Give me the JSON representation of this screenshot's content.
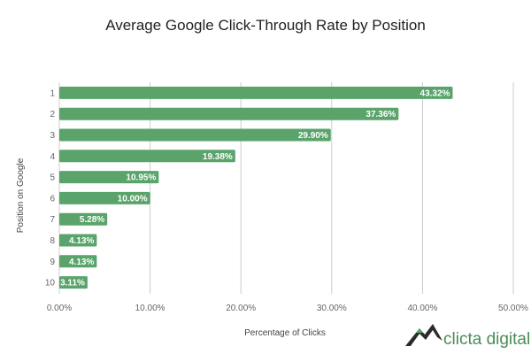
{
  "chart_data": {
    "type": "bar",
    "orientation": "horizontal",
    "title": "Average Google Click-Through Rate by Position",
    "xlabel": "Percentage of Clicks",
    "ylabel": "Position on Google",
    "categories": [
      "1",
      "2",
      "3",
      "4",
      "5",
      "6",
      "7",
      "8",
      "9",
      "10"
    ],
    "values": [
      43.32,
      37.36,
      29.9,
      19.38,
      10.95,
      10.0,
      5.28,
      4.13,
      4.13,
      3.11
    ],
    "data_labels": [
      "43.32%",
      "37.36%",
      "29.90%",
      "19.38%",
      "10.95%",
      "10.00%",
      "5.28%",
      "4.13%",
      "4.13%",
      "3.11%"
    ],
    "xlim": [
      0,
      50
    ],
    "xticks": [
      "0.00%",
      "10.00%",
      "20.00%",
      "30.00%",
      "40.00%",
      "50.00%"
    ],
    "grid": true,
    "bar_color": "#5aa46b"
  },
  "branding": {
    "logo_text": "clicta digital",
    "logo_icon": "mountain-icon",
    "logo_color": "#4a8c57"
  }
}
